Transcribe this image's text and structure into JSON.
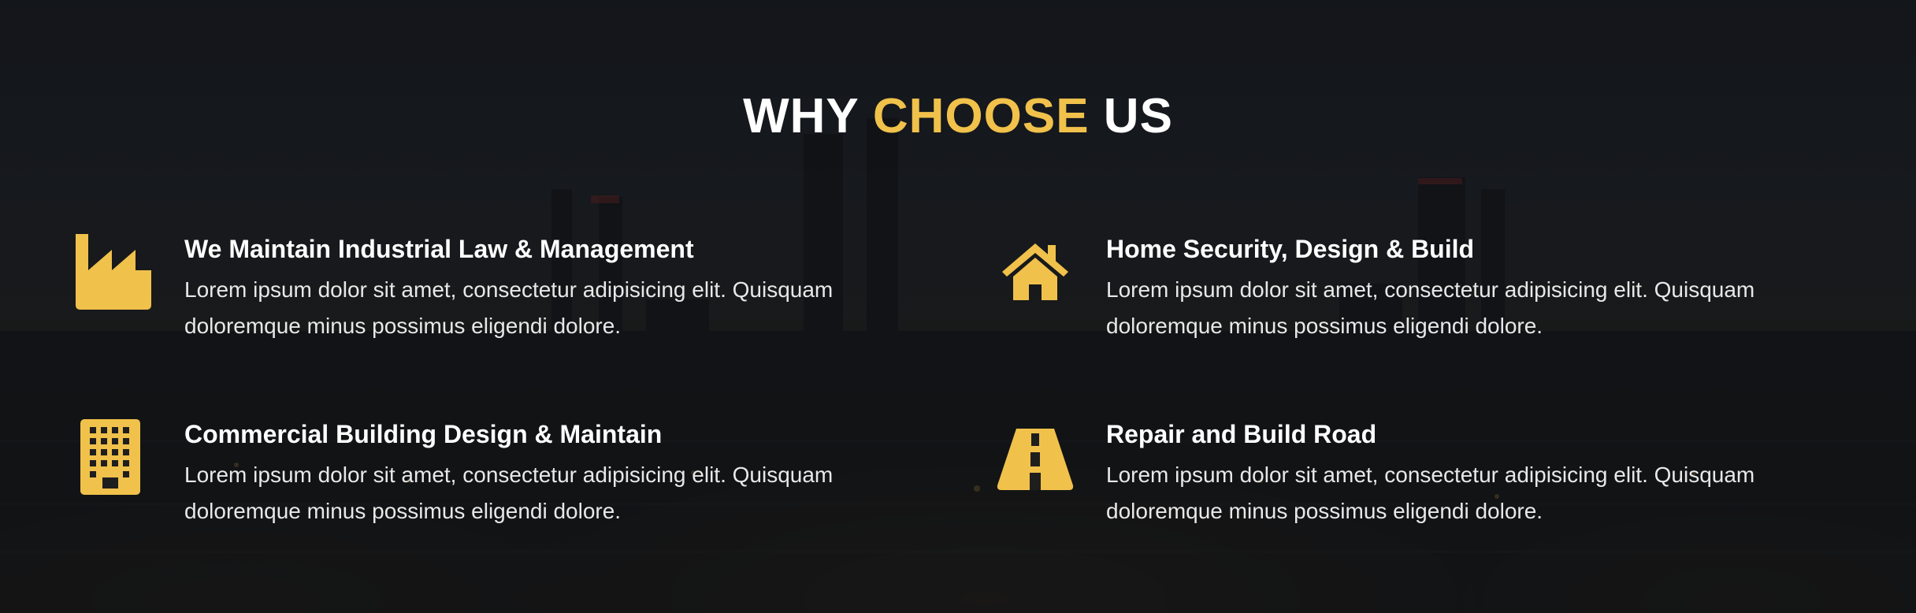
{
  "heading": {
    "part1": "WHY ",
    "part2": "CHOOSE",
    "part3": " US"
  },
  "colors": {
    "accent": "#f0c14b",
    "text": "#ffffff"
  },
  "features": [
    {
      "icon": "factory-icon",
      "title": "We Maintain Industrial Law & Management",
      "description": "Lorem ipsum dolor sit amet, consectetur adipisicing elit. Quisquam doloremque minus possimus eligendi dolore."
    },
    {
      "icon": "home-icon",
      "title": "Home Security, Design & Build",
      "description": "Lorem ipsum dolor sit amet, consectetur adipisicing elit. Quisquam doloremque minus possimus eligendi dolore."
    },
    {
      "icon": "building-icon",
      "title": "Commercial Building Design & Maintain",
      "description": "Lorem ipsum dolor sit amet, consectetur adipisicing elit. Quisquam doloremque minus possimus eligendi dolore."
    },
    {
      "icon": "road-icon",
      "title": "Repair and Build Road",
      "description": "Lorem ipsum dolor sit amet, consectetur adipisicing elit. Quisquam doloremque minus possimus eligendi dolore."
    }
  ]
}
